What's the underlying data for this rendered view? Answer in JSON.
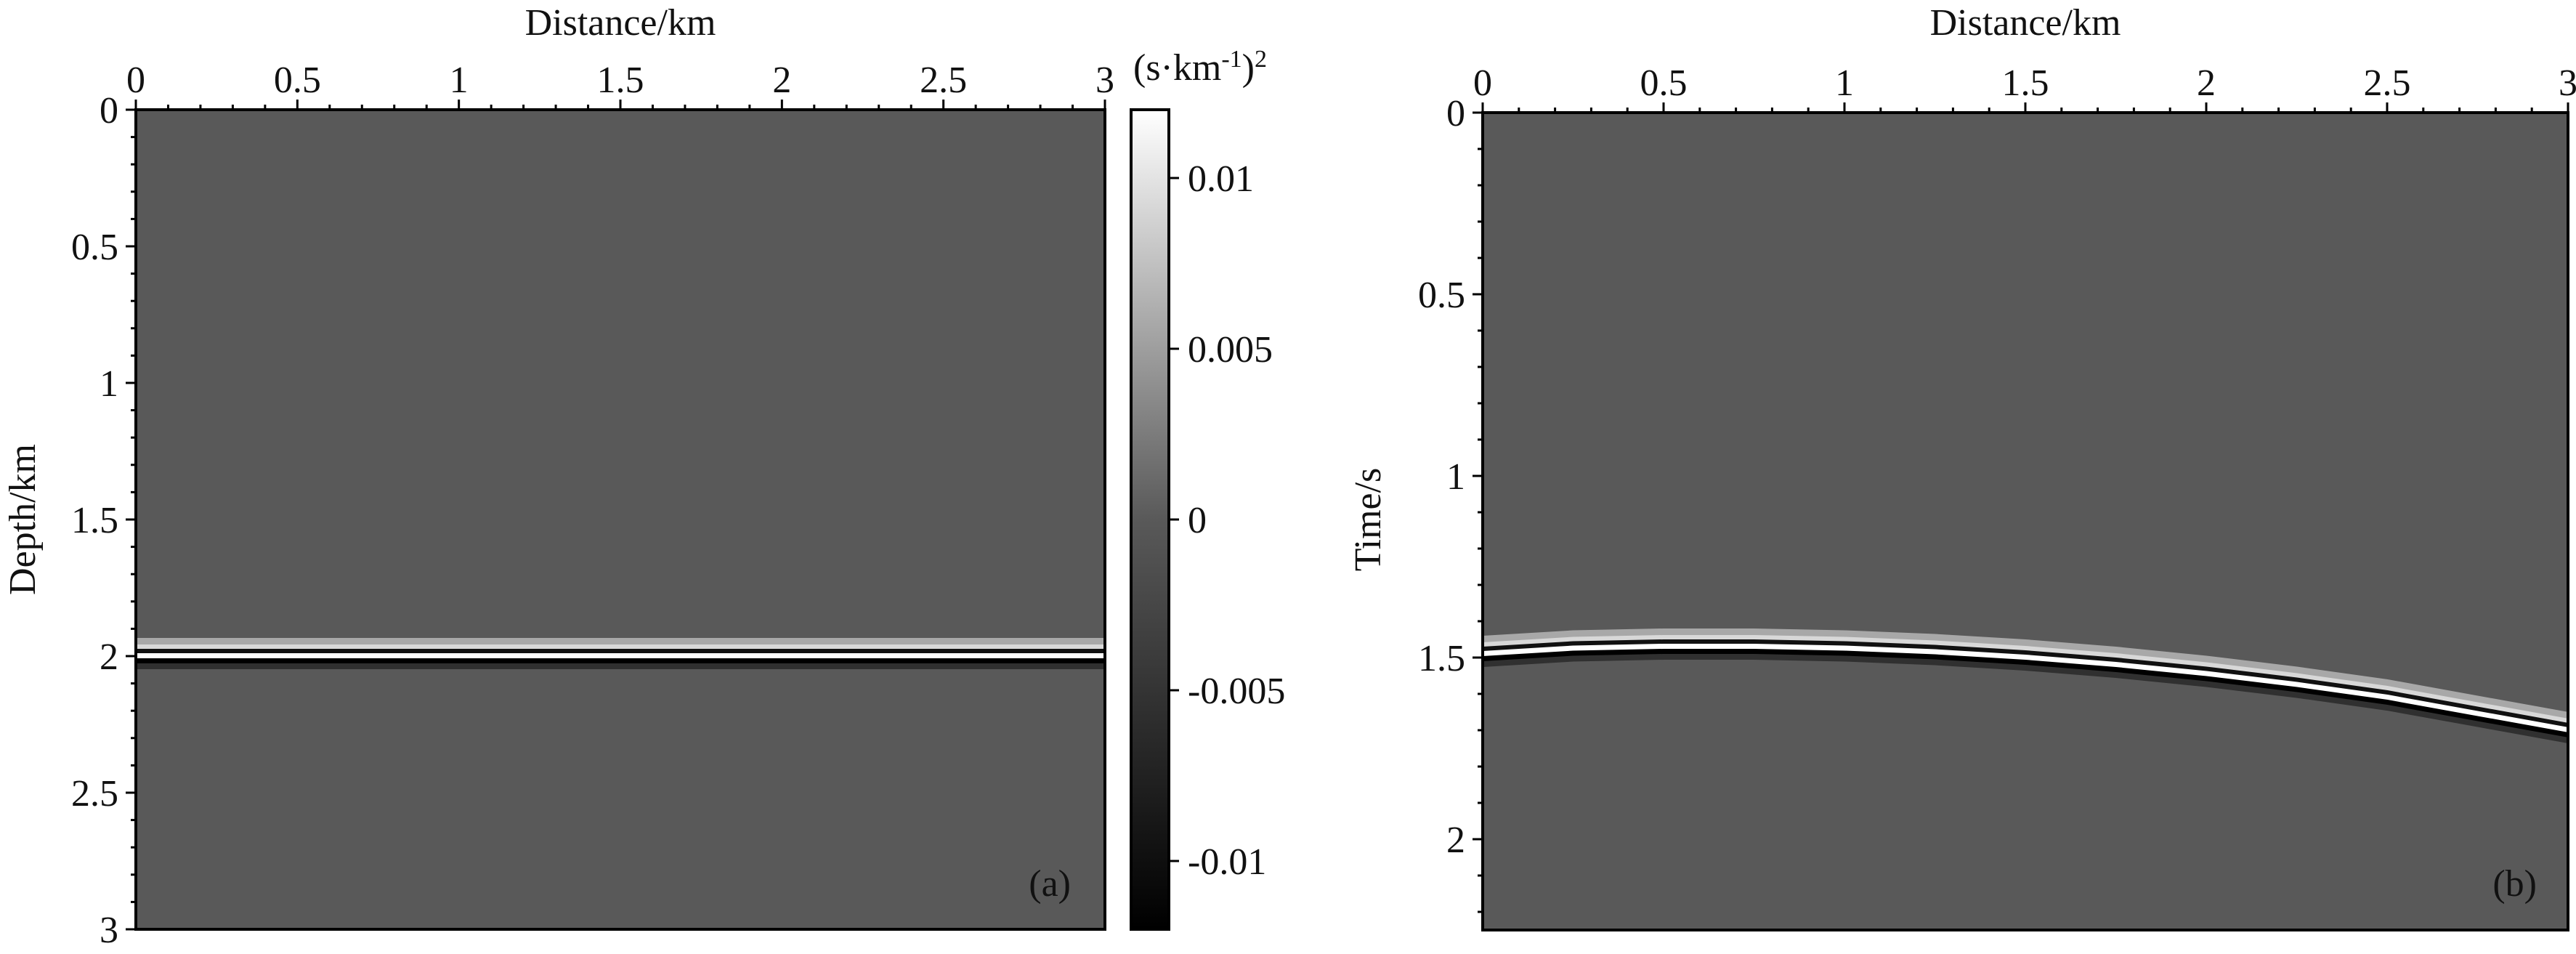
{
  "chart_data": [
    {
      "type": "heatmap",
      "panel": "(a)",
      "xlabel": "Distance/km",
      "ylabel": "Depth/km",
      "xlim": [
        0,
        3
      ],
      "ylim": [
        0,
        3
      ],
      "y_inverted": true,
      "x_axis_position": "top",
      "xticks": [
        "0",
        "0.5",
        "1",
        "1.5",
        "2",
        "2.5",
        "3"
      ],
      "yticks": [
        "0",
        "0.5",
        "1",
        "1.5",
        "2",
        "2.5",
        "3"
      ],
      "background_value": 0,
      "events": [
        {
          "shape": "flat",
          "depth_km": 2.0,
          "polarity": "positive-over-negative"
        }
      ]
    },
    {
      "type": "heatmap",
      "panel": "(b)",
      "xlabel": "Distance/km",
      "ylabel": "Time/s",
      "xlim": [
        0,
        3
      ],
      "ylim": [
        0,
        2.25
      ],
      "y_inverted": true,
      "x_axis_position": "top",
      "xticks": [
        "0",
        "0.5",
        "1",
        "1.5",
        "2",
        "2.5",
        "3"
      ],
      "yticks": [
        "0",
        "0.5",
        "1",
        "1.5",
        "2"
      ],
      "background_value": 0,
      "events": [
        {
          "shape": "curve",
          "x_km": [
            0,
            0.25,
            0.5,
            0.75,
            1.0,
            1.25,
            1.5,
            1.75,
            2.0,
            2.25,
            2.5,
            2.75,
            3.0
          ],
          "t_s": [
            1.49,
            1.475,
            1.47,
            1.47,
            1.475,
            1.485,
            1.5,
            1.52,
            1.545,
            1.575,
            1.61,
            1.655,
            1.7
          ]
        }
      ]
    }
  ],
  "colorbar": {
    "unit_base": "(s·km",
    "unit_sup1": "-1",
    "unit_close": ")",
    "unit_sup2": "2",
    "range": [
      -0.012,
      0.012
    ],
    "ticks": [
      {
        "value": 0.01,
        "label": "0.01"
      },
      {
        "value": 0.005,
        "label": "0.005"
      },
      {
        "value": 0,
        "label": "0"
      },
      {
        "value": -0.005,
        "label": "-0.005"
      },
      {
        "value": -0.01,
        "label": "-0.01"
      }
    ],
    "colormap": "gray"
  },
  "colors": {
    "background_fill": "#595959",
    "positive": "#ffffff",
    "negative": "#000000"
  }
}
